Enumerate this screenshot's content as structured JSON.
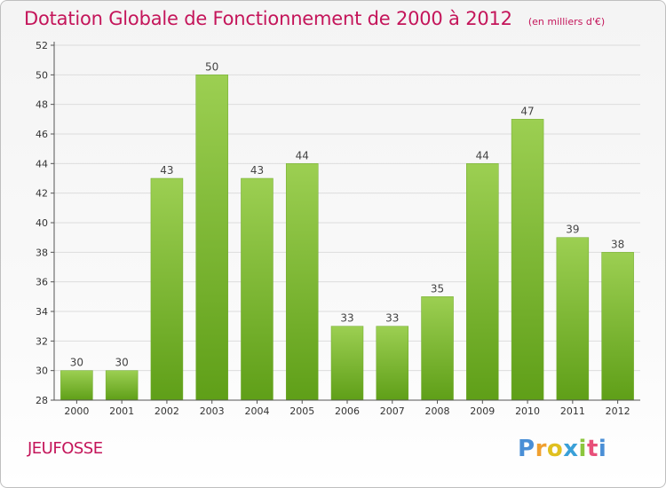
{
  "header": {
    "title": "Dotation Globale de Fonctionnement de 2000 à 2012",
    "unit": "(en milliers d'€)"
  },
  "footer": {
    "commune": "JEUFOSSE",
    "logo_text": "Proxiti"
  },
  "colors": {
    "title": "#c4155a",
    "bar_top": "#9ccf52",
    "bar_bottom": "#5f9f18",
    "axis": "#555555",
    "grid": "#dcdcdc"
  },
  "chart_data": {
    "type": "bar",
    "title": "Dotation Globale de Fonctionnement de 2000 à 2012",
    "subtitle": "(en milliers d'€)",
    "xlabel": "",
    "ylabel": "",
    "categories": [
      "2000",
      "2001",
      "2002",
      "2003",
      "2004",
      "2005",
      "2006",
      "2007",
      "2008",
      "2009",
      "2010",
      "2011",
      "2012"
    ],
    "values": [
      30,
      30,
      43,
      50,
      43,
      44,
      33,
      33,
      35,
      44,
      47,
      39,
      38
    ],
    "ylim": [
      28,
      52
    ],
    "yticks": [
      28,
      30,
      32,
      34,
      36,
      38,
      40,
      42,
      44,
      46,
      48,
      50,
      52
    ],
    "grid": true,
    "legend": "none",
    "data_labels": true
  }
}
